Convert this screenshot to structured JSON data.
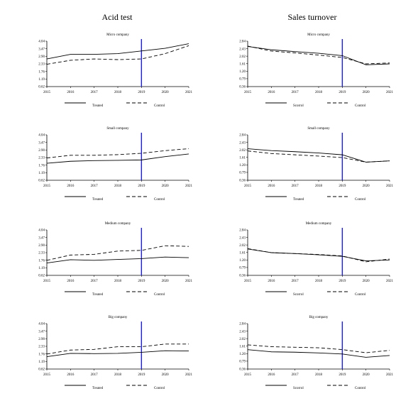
{
  "columns": [
    {
      "title": "Acid test"
    },
    {
      "title": "Sales turnover"
    }
  ],
  "legend": {
    "treated": "Treated",
    "control": "Control"
  },
  "styles": {
    "treated_dash": "solid",
    "control_dash": "dashed",
    "line_color": "#000000",
    "treatment_line_color": "#1a1aff"
  },
  "chart_data": [
    {
      "type": "line",
      "column": "Acid test",
      "title": "Micro company",
      "x": [
        2015,
        2016,
        2017,
        2018,
        2019,
        2020,
        2021
      ],
      "y_ticks": [
        "0.62",
        "1.19",
        "1.76",
        "2.33",
        "2.90",
        "3.47",
        "4.04"
      ],
      "ylim": [
        0.62,
        4.04
      ],
      "treatment_year": 2019,
      "series": [
        {
          "name": "Treated",
          "values": [
            2.7,
            3.05,
            3.05,
            3.1,
            3.3,
            3.5,
            3.85
          ]
        },
        {
          "name": "Control",
          "values": [
            2.3,
            2.6,
            2.7,
            2.65,
            2.7,
            3.1,
            3.7
          ]
        }
      ]
    },
    {
      "type": "line",
      "column": "Sales turnover",
      "title": "Micro company",
      "x": [
        2015,
        2016,
        2017,
        2018,
        2019,
        2020,
        2021
      ],
      "y_ticks": [
        "0.36",
        "0.79",
        "1.20",
        "1.61",
        "2.02",
        "2.43",
        "2.84"
      ],
      "ylim": [
        0.36,
        2.84
      ],
      "treatment_year": 2019,
      "series": [
        {
          "name": "Scorrol",
          "values": [
            2.55,
            2.37,
            2.27,
            2.18,
            2.05,
            1.55,
            1.6
          ]
        },
        {
          "name": "Control",
          "values": [
            2.57,
            2.3,
            2.2,
            2.08,
            1.95,
            1.6,
            1.65
          ]
        }
      ]
    },
    {
      "type": "line",
      "column": "Acid test",
      "title": "Small company",
      "x": [
        2015,
        2016,
        2017,
        2018,
        2019,
        2020,
        2021
      ],
      "y_ticks": [
        "0.62",
        "1.19",
        "1.76",
        "2.33",
        "2.90",
        "3.47",
        "4.04"
      ],
      "ylim": [
        0.62,
        4.04
      ],
      "treatment_year": 2019,
      "series": [
        {
          "name": "Treated",
          "values": [
            1.9,
            2.05,
            2.1,
            2.12,
            2.15,
            2.4,
            2.6
          ]
        },
        {
          "name": "Control",
          "values": [
            2.3,
            2.5,
            2.5,
            2.55,
            2.65,
            2.85,
            3.0
          ]
        }
      ]
    },
    {
      "type": "line",
      "column": "Sales turnover",
      "title": "Small company",
      "x": [
        2015,
        2016,
        2017,
        2018,
        2019,
        2020,
        2021
      ],
      "y_ticks": [
        "0.36",
        "0.79",
        "1.20",
        "1.61",
        "2.02",
        "2.43",
        "2.84"
      ],
      "ylim": [
        0.36,
        2.84
      ],
      "treatment_year": 2019,
      "series": [
        {
          "name": "Treated",
          "values": [
            2.08,
            1.98,
            1.92,
            1.85,
            1.75,
            1.35,
            1.42
          ]
        },
        {
          "name": "Control",
          "values": [
            1.96,
            1.82,
            1.75,
            1.68,
            1.6,
            1.35,
            1.42
          ]
        }
      ]
    },
    {
      "type": "line",
      "column": "Acid test",
      "title": "Medium company",
      "x": [
        2015,
        2016,
        2017,
        2018,
        2019,
        2020,
        2021
      ],
      "y_ticks": [
        "0.62",
        "1.19",
        "1.76",
        "2.33",
        "2.90",
        "3.47",
        "4.04"
      ],
      "ylim": [
        0.62,
        4.04
      ],
      "treatment_year": 2019,
      "series": [
        {
          "name": "Treated",
          "values": [
            1.55,
            1.8,
            1.75,
            1.82,
            1.88,
            2.0,
            1.95
          ]
        },
        {
          "name": "Control",
          "values": [
            1.75,
            2.15,
            2.2,
            2.45,
            2.5,
            2.85,
            2.8
          ]
        }
      ]
    },
    {
      "type": "line",
      "column": "Sales turnover",
      "title": "Medium company",
      "x": [
        2015,
        2016,
        2017,
        2018,
        2019,
        2020,
        2021
      ],
      "y_ticks": [
        "0.36",
        "0.79",
        "1.20",
        "1.61",
        "2.02",
        "2.43",
        "2.84"
      ],
      "ylim": [
        0.36,
        2.84
      ],
      "treatment_year": 2019,
      "series": [
        {
          "name": "Scorrol",
          "values": [
            1.8,
            1.6,
            1.55,
            1.48,
            1.4,
            1.15,
            1.2
          ]
        },
        {
          "name": "Control",
          "values": [
            1.82,
            1.6,
            1.55,
            1.5,
            1.42,
            1.1,
            1.25
          ]
        }
      ]
    },
    {
      "type": "line",
      "column": "Acid test",
      "title": "Big company",
      "x": [
        2015,
        2016,
        2017,
        2018,
        2019,
        2020,
        2021
      ],
      "y_ticks": [
        "0.62",
        "1.19",
        "1.76",
        "2.33",
        "2.90",
        "3.47",
        "4.04"
      ],
      "ylim": [
        0.62,
        4.04
      ],
      "treatment_year": 2019,
      "series": [
        {
          "name": "Treated",
          "values": [
            1.55,
            1.8,
            1.78,
            1.8,
            1.88,
            2.0,
            1.98
          ]
        },
        {
          "name": "Control",
          "values": [
            1.75,
            2.05,
            2.1,
            2.3,
            2.3,
            2.5,
            2.5
          ]
        }
      ]
    },
    {
      "type": "line",
      "column": "Sales turnover",
      "title": "Big company",
      "x": [
        2015,
        2016,
        2017,
        2018,
        2019,
        2020,
        2021
      ],
      "y_ticks": [
        "0.36",
        "0.79",
        "1.20",
        "1.61",
        "2.02",
        "2.43",
        "2.84"
      ],
      "ylim": [
        0.36,
        2.84
      ],
      "treatment_year": 2019,
      "series": [
        {
          "name": "Scorrol",
          "values": [
            1.42,
            1.3,
            1.28,
            1.24,
            1.18,
            1.0,
            1.1
          ]
        },
        {
          "name": "Control",
          "values": [
            1.68,
            1.58,
            1.55,
            1.52,
            1.42,
            1.25,
            1.38
          ]
        }
      ]
    }
  ]
}
